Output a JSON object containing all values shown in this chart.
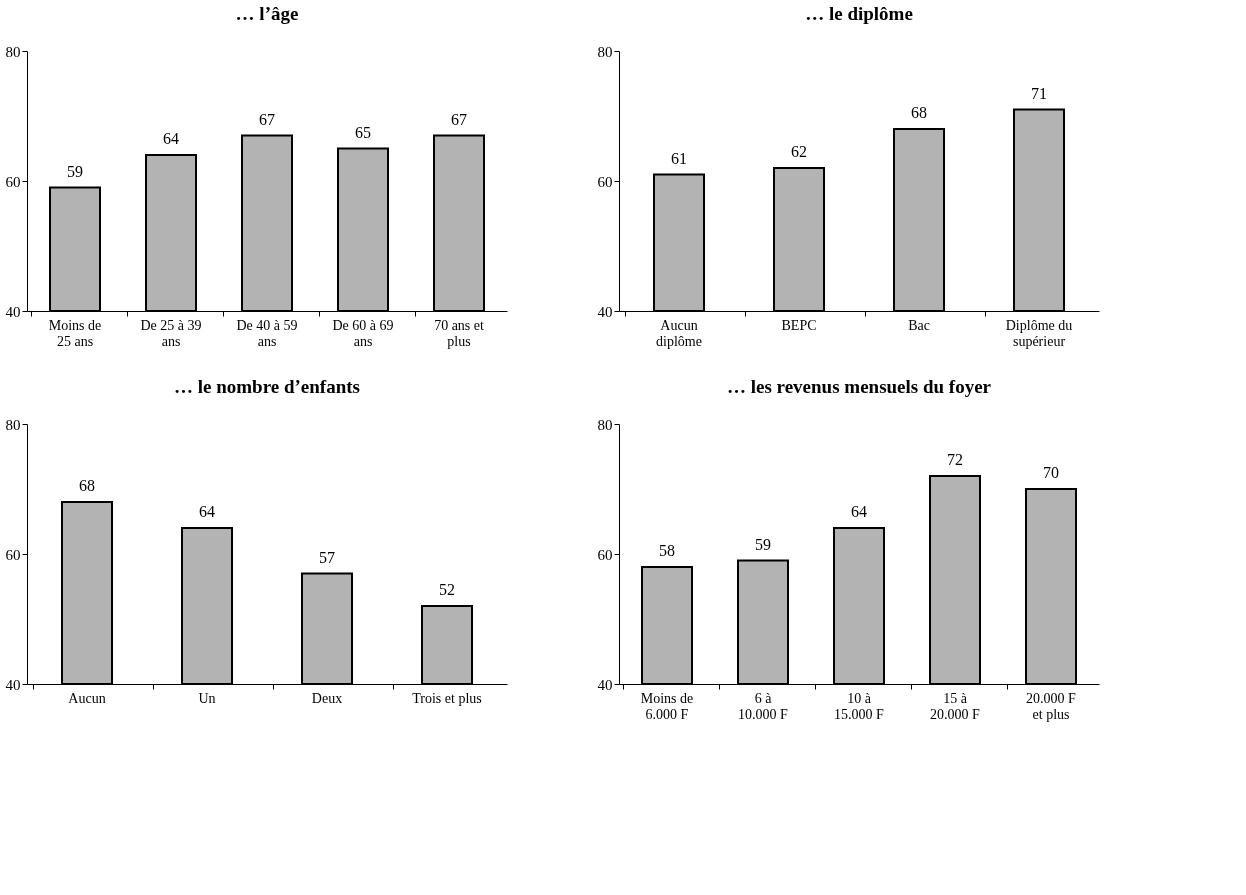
{
  "chart_data": [
    {
      "type": "bar",
      "title": "… l’âge",
      "categories": [
        "Moins de\n25 ans",
        "De 25 à 39\nans",
        "De 40 à 59\nans",
        "De 60 à 69\nans",
        "70 ans et\nplus"
      ],
      "values": [
        59,
        64,
        67,
        65,
        67
      ],
      "color": "#b3b3b3",
      "ylim": [
        40,
        80
      ],
      "yticks": [
        40,
        60,
        80
      ],
      "data_labels": true,
      "grid": false
    },
    {
      "type": "bar",
      "title": "… le diplôme",
      "categories": [
        "Aucun\ndiplôme",
        "BEPC",
        "Bac",
        "Diplôme du\nsupérieur"
      ],
      "values": [
        61,
        62,
        68,
        71
      ],
      "color": "#b3b3b3",
      "ylim": [
        40,
        80
      ],
      "yticks": [
        40,
        60,
        80
      ],
      "data_labels": true,
      "grid": false
    },
    {
      "type": "bar",
      "title": "… le nombre d’enfants",
      "categories": [
        "Aucun",
        "Un",
        "Deux",
        "Trois et plus"
      ],
      "values": [
        68,
        64,
        57,
        52
      ],
      "color": "#b3b3b3",
      "ylim": [
        40,
        80
      ],
      "yticks": [
        40,
        60,
        80
      ],
      "data_labels": true,
      "grid": false
    },
    {
      "type": "bar",
      "title": "… les revenus mensuels du foyer",
      "categories": [
        "Moins de\n6.000 F",
        "6 à\n10.000 F",
        "10 à\n15.000 F",
        "15 à\n20.000 F",
        "20.000 F\net plus"
      ],
      "values": [
        58,
        59,
        64,
        72,
        70
      ],
      "color": "#b3b3b3",
      "ylim": [
        40,
        80
      ],
      "yticks": [
        40,
        60,
        80
      ],
      "data_labels": true,
      "grid": false
    }
  ]
}
